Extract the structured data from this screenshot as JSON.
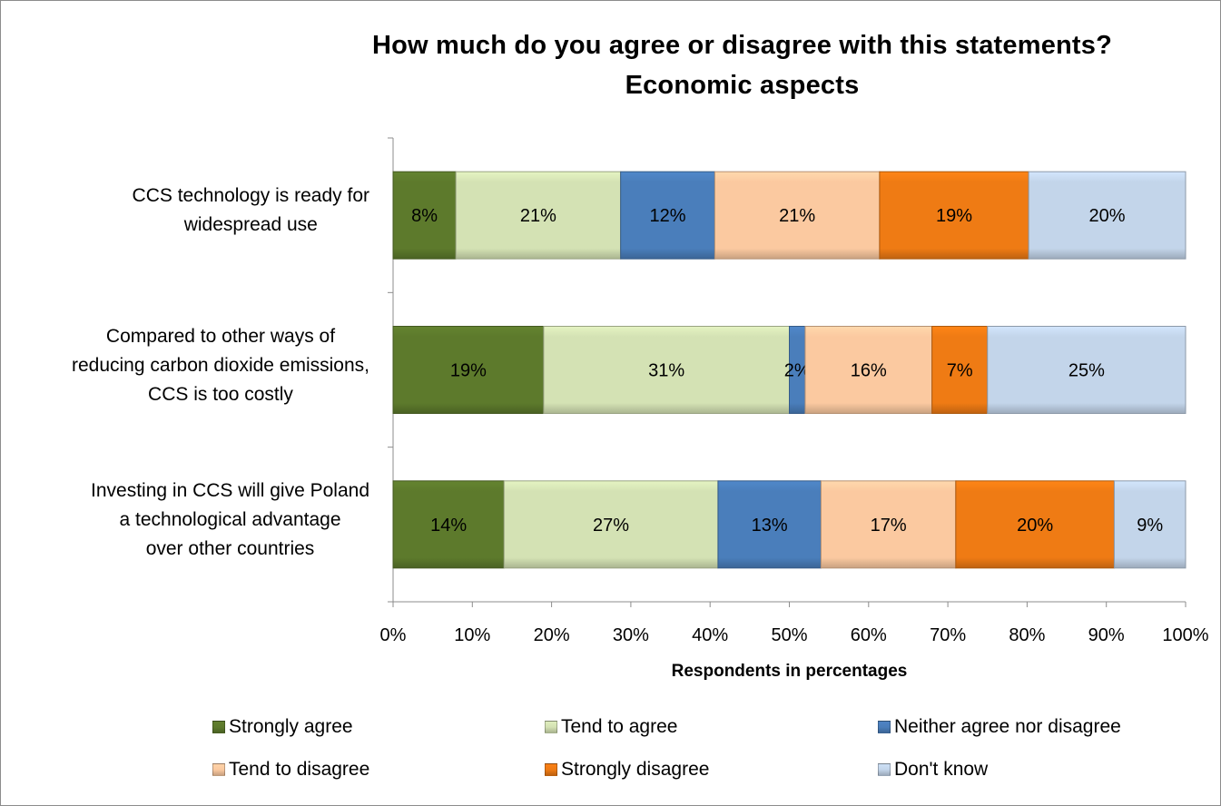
{
  "chart_data": {
    "type": "bar",
    "orientation": "horizontal",
    "stacked": "percent",
    "title": "How much do you agree or disagree with this statements?",
    "subtitle": "Economic aspects",
    "xlabel": "Respondents in percentages",
    "ylabel": "",
    "xlim": [
      0,
      100
    ],
    "x_ticks": [
      "0%",
      "10%",
      "20%",
      "30%",
      "40%",
      "50%",
      "60%",
      "70%",
      "80%",
      "90%",
      "100%"
    ],
    "categories": [
      [
        "CCS technology is ready for",
        "widespread use"
      ],
      [
        "Compared to other ways of",
        "reducing carbon dioxide emissions,",
        "CCS is too costly"
      ],
      [
        "Investing in CCS will give Poland",
        "a technological advantage",
        "over other countries"
      ]
    ],
    "series": [
      {
        "name": "Strongly agree",
        "color": "#5d7a2c",
        "values": [
          8,
          19,
          14
        ],
        "labels": [
          "8%",
          "19%",
          "14%"
        ]
      },
      {
        "name": "Tend to agree",
        "color": "#d4e2b4",
        "values": [
          21,
          31,
          27
        ],
        "labels": [
          "21%",
          "31%",
          "27%"
        ]
      },
      {
        "name": "Neither agree nor disagree",
        "color": "#4a7ebb",
        "values": [
          12,
          2,
          13
        ],
        "labels": [
          "12%",
          "2%",
          "13%"
        ]
      },
      {
        "name": "Tend to disagree",
        "color": "#fbc9a0",
        "values": [
          21,
          16,
          17
        ],
        "labels": [
          "21%",
          "16%",
          "17%"
        ]
      },
      {
        "name": "Strongly disagree",
        "color": "#ef7b14",
        "values": [
          19,
          7,
          20
        ],
        "labels": [
          "19%",
          "7%",
          "20%"
        ]
      },
      {
        "name": "Don't know",
        "color": "#c3d5ea",
        "values": [
          20,
          25,
          9
        ],
        "labels": [
          "20%",
          "25%",
          "9%"
        ]
      }
    ],
    "grid": false,
    "legend_position": "bottom"
  }
}
